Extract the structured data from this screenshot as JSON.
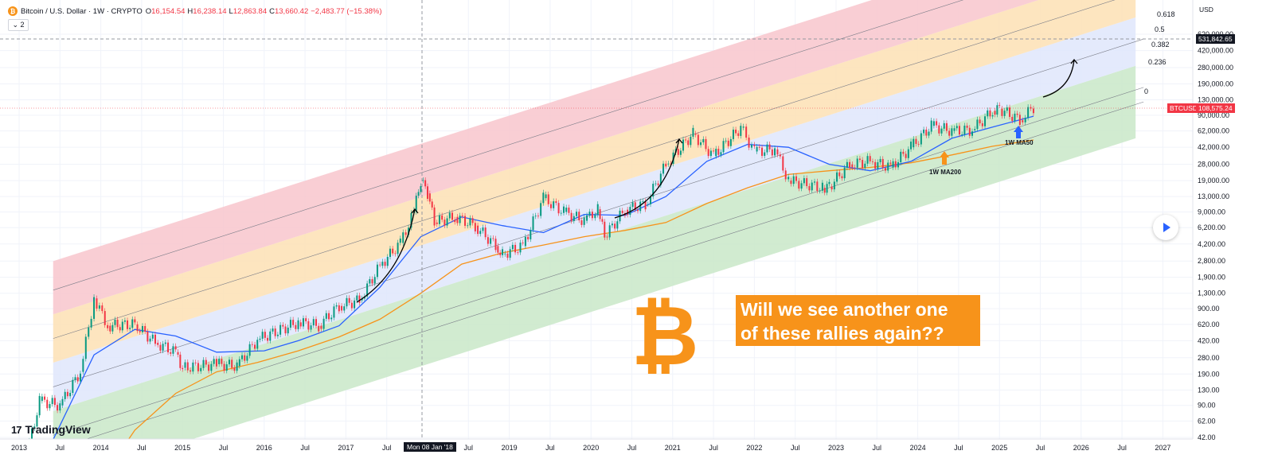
{
  "header": {
    "title": "Bitcoin / U.S. Dollar · 1W · CRYPTO",
    "icon": "bitcoin-icon",
    "ohlc": [
      {
        "key": "O",
        "value": "16,154.54"
      },
      {
        "key": "H",
        "value": "16,238.14"
      },
      {
        "key": "L",
        "value": "12,863.84"
      },
      {
        "key": "C",
        "value": "13,660.42"
      },
      {
        "key": "",
        "value": "−2,483.77 (−15.38%)"
      }
    ],
    "collapse_label": "⌄ 2"
  },
  "logo_text": "TradingView",
  "currency_label": "USD",
  "callout_lines": [
    "Will we see another one",
    "of these rallies again??"
  ],
  "annotations": {
    "ma200": "1W MA200",
    "ma50": "1W MA50"
  },
  "price_tags": {
    "crosshair_price": "531,842.65",
    "symbol": "BTCUSD",
    "last_price": "108,575.24",
    "crosshair_date": "Mon 08 Jan '18"
  },
  "colors": {
    "up": "#089981",
    "down": "#f23645",
    "ma50": "#2962ff",
    "ma200": "#f7931a",
    "band_red": "#f8c6cc",
    "band_orange": "#fde0b4",
    "band_blue": "#dfe6fb",
    "band_green": "#c9e7c8",
    "btc_orange": "#f7931a"
  },
  "chart_data": {
    "type": "line",
    "scale": "log",
    "ylim": [
      42,
      900000
    ],
    "xlim": [
      "2012-11",
      "2027-06"
    ],
    "y_ticks": [
      "620,000.00",
      "420,000.00",
      "280,000.00",
      "190,000.00",
      "130,000.00",
      "90,000.00",
      "62,000.00",
      "42,000.00",
      "28,000.00",
      "19,000.00",
      "13,000.00",
      "9,000.00",
      "6,200.00",
      "4,200.00",
      "2,800.00",
      "1,900.00",
      "1,300.00",
      "900.00",
      "620.00",
      "420.00",
      "280.00",
      "190.00",
      "130.00",
      "90.00",
      "62.00",
      "42.00"
    ],
    "x_ticks": [
      "2013",
      "Jul",
      "2014",
      "Jul",
      "2015",
      "Jul",
      "2016",
      "Jul",
      "2017",
      "Jul",
      "Jul",
      "2019",
      "Jul",
      "2020",
      "Jul",
      "2021",
      "Jul",
      "2022",
      "Jul",
      "2023",
      "Jul",
      "2024",
      "Jul",
      "2025",
      "Jul",
      "2026",
      "Jul",
      "2027"
    ],
    "fib_levels": [
      "0.618",
      "0.5",
      "0.382",
      "0.236",
      "0"
    ],
    "series": [
      {
        "name": "BTCUSD",
        "points": [
          [
            "2013-01",
            13
          ],
          [
            "2013-04",
            100
          ],
          [
            "2013-07",
            90
          ],
          [
            "2013-10",
            200
          ],
          [
            "2013-12",
            1150
          ],
          [
            "2014-02",
            600
          ],
          [
            "2014-06",
            620
          ],
          [
            "2014-09",
            400
          ],
          [
            "2014-12",
            320
          ],
          [
            "2015-01",
            220
          ],
          [
            "2015-06",
            240
          ],
          [
            "2015-09",
            230
          ],
          [
            "2015-12",
            430
          ],
          [
            "2016-06",
            650
          ],
          [
            "2016-09",
            600
          ],
          [
            "2016-12",
            960
          ],
          [
            "2017-03",
            1100
          ],
          [
            "2017-06",
            2500
          ],
          [
            "2017-09",
            4300
          ],
          [
            "2017-11",
            9000
          ],
          [
            "2017-12",
            19000
          ],
          [
            "2018-01",
            14000
          ],
          [
            "2018-02",
            7000
          ],
          [
            "2018-05",
            8000
          ],
          [
            "2018-08",
            6500
          ],
          [
            "2018-11",
            4000
          ],
          [
            "2018-12",
            3300
          ],
          [
            "2019-03",
            4000
          ],
          [
            "2019-06",
            12500
          ],
          [
            "2019-09",
            9000
          ],
          [
            "2019-12",
            7300
          ],
          [
            "2020-02",
            9600
          ],
          [
            "2020-03",
            5000
          ],
          [
            "2020-06",
            9500
          ],
          [
            "2020-09",
            10800
          ],
          [
            "2020-12",
            28000
          ],
          [
            "2021-04",
            58000
          ],
          [
            "2021-07",
            34000
          ],
          [
            "2021-11",
            67000
          ],
          [
            "2022-01",
            38000
          ],
          [
            "2022-04",
            40000
          ],
          [
            "2022-06",
            19000
          ],
          [
            "2022-11",
            16000
          ],
          [
            "2022-12",
            16500
          ],
          [
            "2023-03",
            28000
          ],
          [
            "2023-06",
            30000
          ],
          [
            "2023-09",
            26000
          ],
          [
            "2023-12",
            42000
          ],
          [
            "2024-03",
            70000
          ],
          [
            "2024-06",
            62000
          ],
          [
            "2024-09",
            63000
          ],
          [
            "2024-12",
            100000
          ],
          [
            "2025-01",
            105000
          ],
          [
            "2025-04",
            80000
          ],
          [
            "2025-06",
            108575
          ]
        ]
      },
      {
        "name": "1W MA50",
        "points": [
          [
            "2013-06",
            40
          ],
          [
            "2013-12",
            300
          ],
          [
            "2014-06",
            550
          ],
          [
            "2014-12",
            470
          ],
          [
            "2015-06",
            320
          ],
          [
            "2016-01",
            330
          ],
          [
            "2016-06",
            420
          ],
          [
            "2016-12",
            600
          ],
          [
            "2017-06",
            1500
          ],
          [
            "2017-12",
            5000
          ],
          [
            "2018-06",
            8000
          ],
          [
            "2018-12",
            6500
          ],
          [
            "2019-06",
            5500
          ],
          [
            "2019-12",
            8500
          ],
          [
            "2020-06",
            8300
          ],
          [
            "2020-12",
            13000
          ],
          [
            "2021-06",
            30000
          ],
          [
            "2021-12",
            45000
          ],
          [
            "2022-06",
            42000
          ],
          [
            "2022-12",
            28000
          ],
          [
            "2023-06",
            24000
          ],
          [
            "2023-12",
            30000
          ],
          [
            "2024-06",
            52000
          ],
          [
            "2024-12",
            68000
          ],
          [
            "2025-06",
            88000
          ]
        ]
      },
      {
        "name": "1W MA200",
        "points": [
          [
            "2013-12",
            12
          ],
          [
            "2014-06",
            50
          ],
          [
            "2014-12",
            120
          ],
          [
            "2015-06",
            200
          ],
          [
            "2015-12",
            250
          ],
          [
            "2016-06",
            330
          ],
          [
            "2016-12",
            460
          ],
          [
            "2017-06",
            700
          ],
          [
            "2017-12",
            1300
          ],
          [
            "2018-06",
            2600
          ],
          [
            "2018-12",
            3400
          ],
          [
            "2019-06",
            4100
          ],
          [
            "2019-12",
            5000
          ],
          [
            "2020-06",
            5800
          ],
          [
            "2020-12",
            7000
          ],
          [
            "2021-06",
            11000
          ],
          [
            "2021-12",
            16000
          ],
          [
            "2022-06",
            22000
          ],
          [
            "2022-12",
            24000
          ],
          [
            "2023-06",
            26000
          ],
          [
            "2023-12",
            29000
          ],
          [
            "2024-06",
            35000
          ],
          [
            "2024-12",
            43000
          ],
          [
            "2025-06",
            50000
          ]
        ]
      }
    ]
  }
}
